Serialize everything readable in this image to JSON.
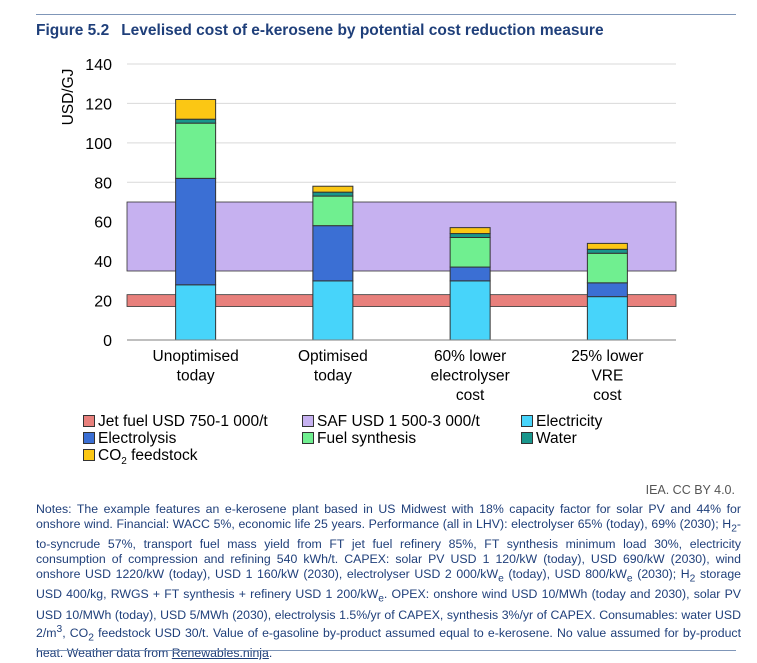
{
  "figure": {
    "number": "Figure 5.2",
    "title": "Levelised cost of e-kerosene by potential cost reduction measure"
  },
  "chart_data": {
    "type": "bar",
    "stacked": true,
    "ylabel": "USD/GJ",
    "ylim": [
      0,
      140
    ],
    "yticks": [
      0,
      20,
      40,
      60,
      80,
      100,
      120,
      140
    ],
    "categories": [
      [
        "Unoptimised",
        "today"
      ],
      [
        "Optimised",
        "today"
      ],
      [
        "60% lower",
        "electrolyser",
        "cost"
      ],
      [
        "25% lower",
        "VRE",
        "cost"
      ]
    ],
    "ranges": [
      {
        "name": "Jet fuel USD 750-1 000/t",
        "from": 17,
        "to": 23,
        "color": "#e8807c"
      },
      {
        "name": "SAF USD 1 500-3 000/t",
        "from": 35,
        "to": 70,
        "color": "#c6b1f0"
      }
    ],
    "series": [
      {
        "name": "Electricity",
        "color": "#47d4fa",
        "values": [
          28,
          30,
          30,
          22
        ]
      },
      {
        "name": "Electrolysis",
        "color": "#3b6fd4",
        "values": [
          54,
          28,
          7,
          7
        ]
      },
      {
        "name": "Fuel synthesis",
        "color": "#70ef90",
        "values": [
          28,
          15,
          15,
          15
        ]
      },
      {
        "name": "Water",
        "color": "#19968c",
        "values": [
          2,
          2,
          2,
          2
        ]
      },
      {
        "name": "CO₂ feedstock",
        "color": "#fbc714",
        "values": [
          10,
          3,
          3,
          3
        ]
      }
    ]
  },
  "legend": {
    "jet_fuel": "Jet fuel USD 750-1 000/t",
    "saf": "SAF USD 1 500-3 000/t",
    "electricity": "Electricity",
    "electrolysis": "Electrolysis",
    "fuel_synthesis": "Fuel synthesis",
    "water": "Water",
    "co2_prefix": "CO",
    "co2_sub": "2",
    "co2_suffix": " feedstock"
  },
  "credit": "IEA. CC BY 4.0.",
  "notes": {
    "p1": "Notes: The example features an e-kerosene plant based in US Midwest with 18% capacity factor for solar PV and 44% for onshore wind. Financial: WACC 5%, economic life 25 years. Performance (all in LHV): electrolyser 65% (today), 69% (2030); H",
    "sub_h2": "2",
    "p2": "-to-syncrude 57%, transport fuel mass yield from FT jet fuel refinery 85%, FT synthesis minimum load 30%, electricity consumption of compression and refining 540 kWh/t. CAPEX: solar PV USD 1 120/kW (today), USD 690/kW (2030), wind onshore USD 1220/kW (today), USD 1 160/kW (2030), electrolyser USD 2 000/kW",
    "sub_e1": "e",
    "p3": " (today), USD 800/kW",
    "sub_e2": "e",
    "p4": " (2030); H",
    "sub_h2b": "2",
    "p5": " storage USD 400/kg, RWGS + FT synthesis + refinery USD 1 200/kW",
    "sub_e3": "e",
    "p6": ". OPEX: onshore wind USD 10/MWh (today and 2030), solar PV USD 10/MWh (today), USD 5/MWh (2030), electrolysis 1.5%/yr of CAPEX, synthesis 3%/yr of CAPEX. Consumables: water USD 2/m",
    "sup_3": "3",
    "p7": ", CO",
    "sub_co2": "2",
    "p8": " feedstock USD 30/t. Value of e-gasoline by-product assumed equal to e-kerosene. No value assumed for by-product heat. Weather data from ",
    "link": "Renewables.ninja",
    "p9": "."
  }
}
